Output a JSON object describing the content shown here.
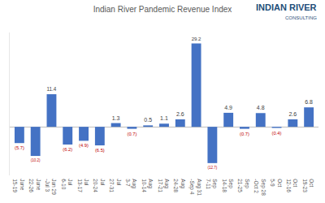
{
  "chart_data": {
    "type": "bar",
    "title": "Indian River Pandemic Revenue Index",
    "annotations": [
      "INDIAN RIVER",
      "CONSULTING"
    ],
    "categories": [
      "June 15-19",
      "June 22-26",
      "Jun 29 -Jul 3",
      "Jul 6-10",
      "Jul 13-17",
      "Jul 20-24",
      "Jul 27-31",
      "Aug 3-7",
      "Aug 10-14",
      "Aug 17-21",
      "Aug 24-28",
      "Aug 31 -Sep 4",
      "Sep 7-11",
      "Sep 14-18",
      "Sep 21-25",
      "Sep 28 -Oct 2",
      "Oct 5-9",
      "Oct 12-16",
      "Oct 19-23"
    ],
    "values": [
      -5.7,
      -10.2,
      11.4,
      -6.2,
      -4.9,
      -6.5,
      1.3,
      -0.7,
      0.5,
      1.1,
      2.6,
      29.2,
      -12.7,
      4.9,
      -0.7,
      4.8,
      -0.4,
      2.6,
      6.8
    ],
    "value_labels": [
      "(5.7)",
      "(10.2)",
      "11.4",
      "(6.2)",
      "(4.9)",
      "(6.5)",
      "1.3",
      "(0.7)",
      "0.5",
      "1.1",
      "2.6",
      "29.2",
      "(12.7)",
      "4.9",
      "(0.7)",
      "4.8",
      "(0.4)",
      "2.6",
      "6.8"
    ],
    "color": "#4472c4",
    "ylim": [
      -17,
      33
    ],
    "data_labels": true,
    "tick_labels": "x",
    "grid": false
  }
}
